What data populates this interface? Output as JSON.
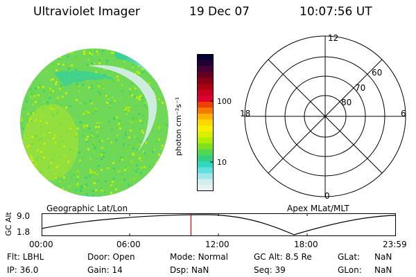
{
  "header": {
    "title": "Ultraviolet Imager",
    "date": "19 Dec 07",
    "time": "10:07:56 UT"
  },
  "colorbar": {
    "unit": "photon cm⁻²s⁻¹",
    "ticks": [
      "100",
      "10"
    ],
    "colors": [
      "#000033",
      "#220033",
      "#440033",
      "#660022",
      "#880011",
      "#aa0011",
      "#cc0022",
      "#e00033",
      "#f04000",
      "#f77a00",
      "#ffb000",
      "#ffd800",
      "#f8f000",
      "#d8f000",
      "#b0ee00",
      "#80e020",
      "#50d850",
      "#30d080",
      "#30d8c0",
      "#60e0e0",
      "#a0e8e8",
      "#d0eeee",
      "#e8f2f2"
    ]
  },
  "polar": {
    "labels": {
      "top": "12",
      "left": "18",
      "right": "6",
      "bottom": "0"
    },
    "rings": [
      "80",
      "70",
      "60"
    ]
  },
  "labels": {
    "geo": "Geographic Lat/Lon",
    "apex": "Apex MLat/MLT"
  },
  "timeline": {
    "ylabel": "GC Alt",
    "y_top": "9.0",
    "y_bottom": "1.8",
    "x_ticks": [
      "00:00",
      "06:00",
      "12:00",
      "18:00",
      "23:59"
    ],
    "marker_time": "10:07:56",
    "marker_color": "#cc0000"
  },
  "info": {
    "flt_label": "Flt:",
    "flt_value": "LBHL",
    "door_label": "Door:",
    "door_value": "Open",
    "mode_label": "Mode:",
    "mode_value": "Normal",
    "gcalt_label": "GC Alt:",
    "gcalt_value": "8.5 Re",
    "glat_label": "GLat:",
    "glat_value": "NaN",
    "ip_label": "IP:",
    "ip_value": "36.0",
    "gain_label": "Gain:",
    "gain_value": "14",
    "dsp_label": "Dsp:",
    "dsp_value": "NaN",
    "seq_label": "Seq:",
    "seq_value": "39",
    "glon_label": "GLon:",
    "glon_value": "NaN"
  }
}
